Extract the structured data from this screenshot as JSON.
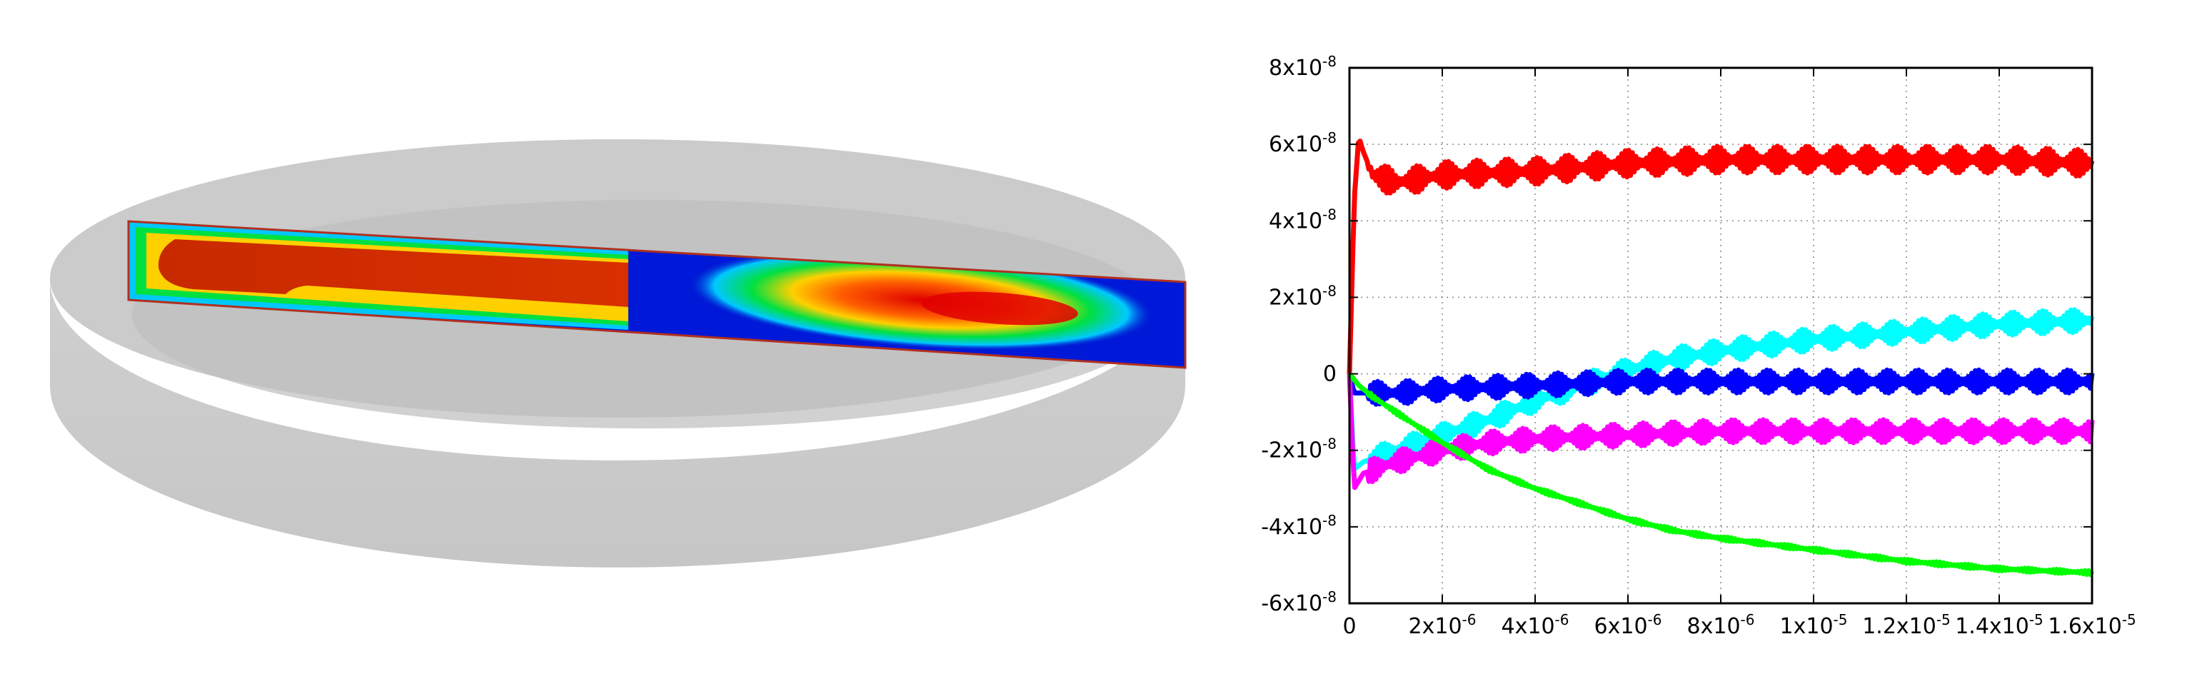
{
  "scene": {
    "description_free": true,
    "colormap": [
      "#0000c8",
      "#0050ff",
      "#00c8ff",
      "#00e040",
      "#c8f000",
      "#ffd000",
      "#ff6000",
      "#e00000"
    ]
  },
  "chart_data": {
    "type": "line",
    "title": "",
    "xlabel": "",
    "ylabel": "",
    "xlim": [
      0,
      1.6e-05
    ],
    "ylim": [
      -6e-08,
      8e-08
    ],
    "grid": true,
    "legend": "none",
    "x_ticks": [
      {
        "value": 0,
        "base": "0",
        "exp": ""
      },
      {
        "value": 2e-06,
        "base": "2x10",
        "exp": "-6"
      },
      {
        "value": 4e-06,
        "base": "4x10",
        "exp": "-6"
      },
      {
        "value": 6e-06,
        "base": "6x10",
        "exp": "-6"
      },
      {
        "value": 8e-06,
        "base": "8x10",
        "exp": "-6"
      },
      {
        "value": 1e-05,
        "base": "1x10",
        "exp": "-5"
      },
      {
        "value": 1.2e-05,
        "base": "1.2x10",
        "exp": "-5"
      },
      {
        "value": 1.4e-05,
        "base": "1.4x10",
        "exp": "-5"
      },
      {
        "value": 1.6e-05,
        "base": "1.6x10",
        "exp": "-5"
      }
    ],
    "y_ticks": [
      {
        "value": 8e-08,
        "base": "8x10",
        "exp": "-8"
      },
      {
        "value": 6e-08,
        "base": "6x10",
        "exp": "-8"
      },
      {
        "value": 4e-08,
        "base": "4x10",
        "exp": "-8"
      },
      {
        "value": 2e-08,
        "base": "2x10",
        "exp": "-8"
      },
      {
        "value": 0,
        "base": "0",
        "exp": ""
      },
      {
        "value": -2e-08,
        "base": "-2x10",
        "exp": "-8"
      },
      {
        "value": -4e-08,
        "base": "-4x10",
        "exp": "-8"
      },
      {
        "value": -6e-08,
        "base": "-6x10",
        "exp": "-8"
      }
    ],
    "series": [
      {
        "color": "#ff0000",
        "osc_amp": 3.5e-09,
        "x": [
          0,
          1e-07,
          2e-07,
          3e-07,
          5e-07,
          1e-06,
          2e-06,
          4e-06,
          6e-06,
          8e-06,
          1e-05,
          1.2e-05,
          1.4e-05,
          1.6e-05
        ],
        "y": [
          0,
          4.5e-08,
          6.2e-08,
          5.8e-08,
          5.2e-08,
          5e-08,
          5.2e-08,
          5.3e-08,
          5.5e-08,
          5.6e-08,
          5.6e-08,
          5.6e-08,
          5.6e-08,
          5.5e-08
        ]
      },
      {
        "color": "#00ffff",
        "osc_amp": 3e-09,
        "x": [
          0,
          1e-07,
          3e-07,
          1e-06,
          2e-06,
          3e-06,
          4e-06,
          5e-06,
          6e-06,
          7e-06,
          8e-06,
          1e-05,
          1.2e-05,
          1.4e-05,
          1.6e-05
        ],
        "y": [
          0,
          -2.5e-08,
          -2.3e-08,
          -2e-08,
          -1.6e-08,
          -1.2e-08,
          -7e-09,
          -3e-09,
          1e-09,
          4e-09,
          6e-09,
          9e-09,
          1.1e-08,
          1.3e-08,
          1.4e-08
        ]
      },
      {
        "color": "#0000ff",
        "osc_amp": 3e-09,
        "x": [
          0,
          1e-07,
          5e-07,
          1e-06,
          2e-06,
          4e-06,
          6e-06,
          8e-06,
          1e-05,
          1.2e-05,
          1.4e-05,
          1.6e-05
        ],
        "y": [
          0,
          -5e-09,
          -5e-09,
          -5e-09,
          -4e-09,
          -3e-09,
          -2e-09,
          -2e-09,
          -2e-09,
          -2e-09,
          -2e-09,
          -2e-09
        ]
      },
      {
        "color": "#ff00ff",
        "osc_amp": 3e-09,
        "x": [
          0,
          1e-07,
          3e-07,
          1e-06,
          2e-06,
          3e-06,
          4e-06,
          6e-06,
          8e-06,
          1e-05,
          1.2e-05,
          1.4e-05,
          1.6e-05
        ],
        "y": [
          0,
          -3e-08,
          -2.6e-08,
          -2.3e-08,
          -2e-08,
          -1.8e-08,
          -1.7e-08,
          -1.6e-08,
          -1.5e-08,
          -1.5e-08,
          -1.5e-08,
          -1.5e-08,
          -1.5e-08
        ]
      },
      {
        "color": "#00ff00",
        "osc_amp": 5e-10,
        "x": [
          0,
          2e-07,
          5e-07,
          1e-06,
          2e-06,
          3e-06,
          4e-06,
          5e-06,
          6e-06,
          7e-06,
          8e-06,
          1e-05,
          1.2e-05,
          1.4e-05,
          1.6e-05
        ],
        "y": [
          0,
          -3e-09,
          -6e-09,
          -1e-08,
          -1.8e-08,
          -2.5e-08,
          -3e-08,
          -3.4e-08,
          -3.8e-08,
          -4.1e-08,
          -4.3e-08,
          -4.6e-08,
          -4.9e-08,
          -5.1e-08,
          -5.2e-08
        ]
      }
    ]
  }
}
